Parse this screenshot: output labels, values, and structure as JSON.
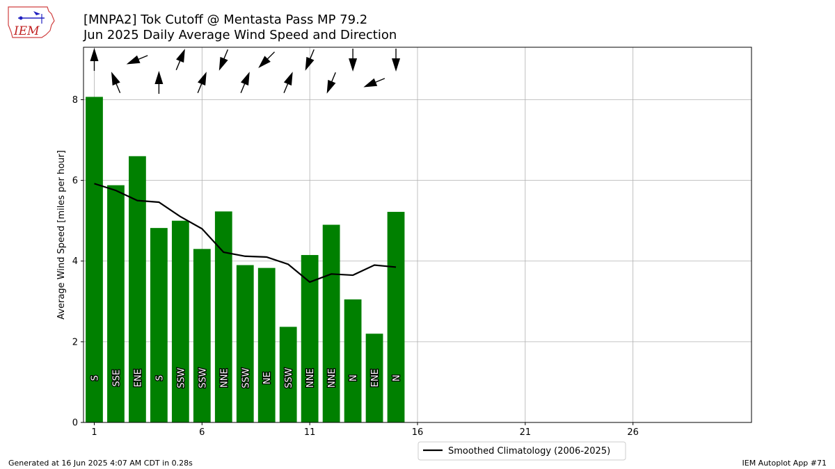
{
  "title_line1": "[MNPA2] Tok Cutoff @ Mentasta Pass MP 79.2",
  "title_line2": "Jun 2025 Daily Average Wind Speed and Direction",
  "footer_left": "Generated at 16 Jun 2025 4:07 AM CDT in 0.28s",
  "footer_right": "IEM Autoplot App #71",
  "logo_text": "IEM",
  "colors": {
    "bar": "#008000",
    "line": "#000000",
    "grid": "#b0b0b0"
  },
  "chart_data": {
    "type": "bar",
    "xlabel": "",
    "ylabel": "Average Wind Speed [miles per hour]",
    "xlim": [
      0.5,
      31.5
    ],
    "ylim": [
      0,
      9.3
    ],
    "xticks": [
      1,
      6,
      11,
      16,
      21,
      26
    ],
    "yticks": [
      0,
      2,
      4,
      6,
      8
    ],
    "grid": true,
    "legend_position": "bottom-center",
    "days": [
      1,
      2,
      3,
      4,
      5,
      6,
      7,
      8,
      9,
      10,
      11,
      12,
      13,
      14,
      15
    ],
    "values": [
      8.07,
      5.88,
      6.6,
      4.82,
      5.0,
      4.3,
      5.23,
      3.9,
      3.83,
      2.37,
      4.15,
      4.9,
      3.05,
      2.2,
      5.22
    ],
    "directions": [
      "S",
      "SSE",
      "ENE",
      "S",
      "SSW",
      "SSW",
      "NNE",
      "SSW",
      "NE",
      "SSW",
      "NNE",
      "NNE",
      "N",
      "ENE",
      "N"
    ],
    "direction_degrees": [
      180,
      157.5,
      67.5,
      180,
      202.5,
      202.5,
      22.5,
      202.5,
      45,
      202.5,
      22.5,
      22.5,
      0,
      67.5,
      0
    ],
    "climatology": {
      "name": "Smoothed Climatology (2006-2025)",
      "values": [
        5.92,
        5.75,
        5.5,
        5.46,
        5.1,
        4.8,
        4.22,
        4.12,
        4.1,
        3.92,
        3.48,
        3.68,
        3.65,
        3.9,
        3.85
      ]
    }
  }
}
